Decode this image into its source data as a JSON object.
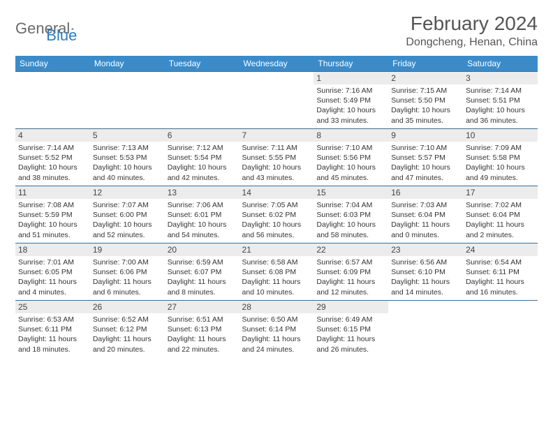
{
  "logo": {
    "text1": "General",
    "text2": "Blue"
  },
  "title": "February 2024",
  "location": "Dongcheng, Henan, China",
  "weekdays": [
    "Sunday",
    "Monday",
    "Tuesday",
    "Wednesday",
    "Thursday",
    "Friday",
    "Saturday"
  ],
  "colors": {
    "header_bg": "#3b8bc9",
    "header_text": "#ffffff",
    "daynum_bg": "#ececec",
    "row_border": "#3b6d94",
    "title_text": "#555555",
    "logo_gray": "#6b6b6b",
    "logo_blue": "#2a7ec4"
  },
  "weeks": [
    [
      null,
      null,
      null,
      null,
      {
        "n": "1",
        "sr": "7:16 AM",
        "ss": "5:49 PM",
        "dl": "10 hours and 33 minutes."
      },
      {
        "n": "2",
        "sr": "7:15 AM",
        "ss": "5:50 PM",
        "dl": "10 hours and 35 minutes."
      },
      {
        "n": "3",
        "sr": "7:14 AM",
        "ss": "5:51 PM",
        "dl": "10 hours and 36 minutes."
      }
    ],
    [
      {
        "n": "4",
        "sr": "7:14 AM",
        "ss": "5:52 PM",
        "dl": "10 hours and 38 minutes."
      },
      {
        "n": "5",
        "sr": "7:13 AM",
        "ss": "5:53 PM",
        "dl": "10 hours and 40 minutes."
      },
      {
        "n": "6",
        "sr": "7:12 AM",
        "ss": "5:54 PM",
        "dl": "10 hours and 42 minutes."
      },
      {
        "n": "7",
        "sr": "7:11 AM",
        "ss": "5:55 PM",
        "dl": "10 hours and 43 minutes."
      },
      {
        "n": "8",
        "sr": "7:10 AM",
        "ss": "5:56 PM",
        "dl": "10 hours and 45 minutes."
      },
      {
        "n": "9",
        "sr": "7:10 AM",
        "ss": "5:57 PM",
        "dl": "10 hours and 47 minutes."
      },
      {
        "n": "10",
        "sr": "7:09 AM",
        "ss": "5:58 PM",
        "dl": "10 hours and 49 minutes."
      }
    ],
    [
      {
        "n": "11",
        "sr": "7:08 AM",
        "ss": "5:59 PM",
        "dl": "10 hours and 51 minutes."
      },
      {
        "n": "12",
        "sr": "7:07 AM",
        "ss": "6:00 PM",
        "dl": "10 hours and 52 minutes."
      },
      {
        "n": "13",
        "sr": "7:06 AM",
        "ss": "6:01 PM",
        "dl": "10 hours and 54 minutes."
      },
      {
        "n": "14",
        "sr": "7:05 AM",
        "ss": "6:02 PM",
        "dl": "10 hours and 56 minutes."
      },
      {
        "n": "15",
        "sr": "7:04 AM",
        "ss": "6:03 PM",
        "dl": "10 hours and 58 minutes."
      },
      {
        "n": "16",
        "sr": "7:03 AM",
        "ss": "6:04 PM",
        "dl": "11 hours and 0 minutes."
      },
      {
        "n": "17",
        "sr": "7:02 AM",
        "ss": "6:04 PM",
        "dl": "11 hours and 2 minutes."
      }
    ],
    [
      {
        "n": "18",
        "sr": "7:01 AM",
        "ss": "6:05 PM",
        "dl": "11 hours and 4 minutes."
      },
      {
        "n": "19",
        "sr": "7:00 AM",
        "ss": "6:06 PM",
        "dl": "11 hours and 6 minutes."
      },
      {
        "n": "20",
        "sr": "6:59 AM",
        "ss": "6:07 PM",
        "dl": "11 hours and 8 minutes."
      },
      {
        "n": "21",
        "sr": "6:58 AM",
        "ss": "6:08 PM",
        "dl": "11 hours and 10 minutes."
      },
      {
        "n": "22",
        "sr": "6:57 AM",
        "ss": "6:09 PM",
        "dl": "11 hours and 12 minutes."
      },
      {
        "n": "23",
        "sr": "6:56 AM",
        "ss": "6:10 PM",
        "dl": "11 hours and 14 minutes."
      },
      {
        "n": "24",
        "sr": "6:54 AM",
        "ss": "6:11 PM",
        "dl": "11 hours and 16 minutes."
      }
    ],
    [
      {
        "n": "25",
        "sr": "6:53 AM",
        "ss": "6:11 PM",
        "dl": "11 hours and 18 minutes."
      },
      {
        "n": "26",
        "sr": "6:52 AM",
        "ss": "6:12 PM",
        "dl": "11 hours and 20 minutes."
      },
      {
        "n": "27",
        "sr": "6:51 AM",
        "ss": "6:13 PM",
        "dl": "11 hours and 22 minutes."
      },
      {
        "n": "28",
        "sr": "6:50 AM",
        "ss": "6:14 PM",
        "dl": "11 hours and 24 minutes."
      },
      {
        "n": "29",
        "sr": "6:49 AM",
        "ss": "6:15 PM",
        "dl": "11 hours and 26 minutes."
      },
      null,
      null
    ]
  ],
  "labels": {
    "sunrise": "Sunrise:",
    "sunset": "Sunset:",
    "daylight": "Daylight:"
  }
}
